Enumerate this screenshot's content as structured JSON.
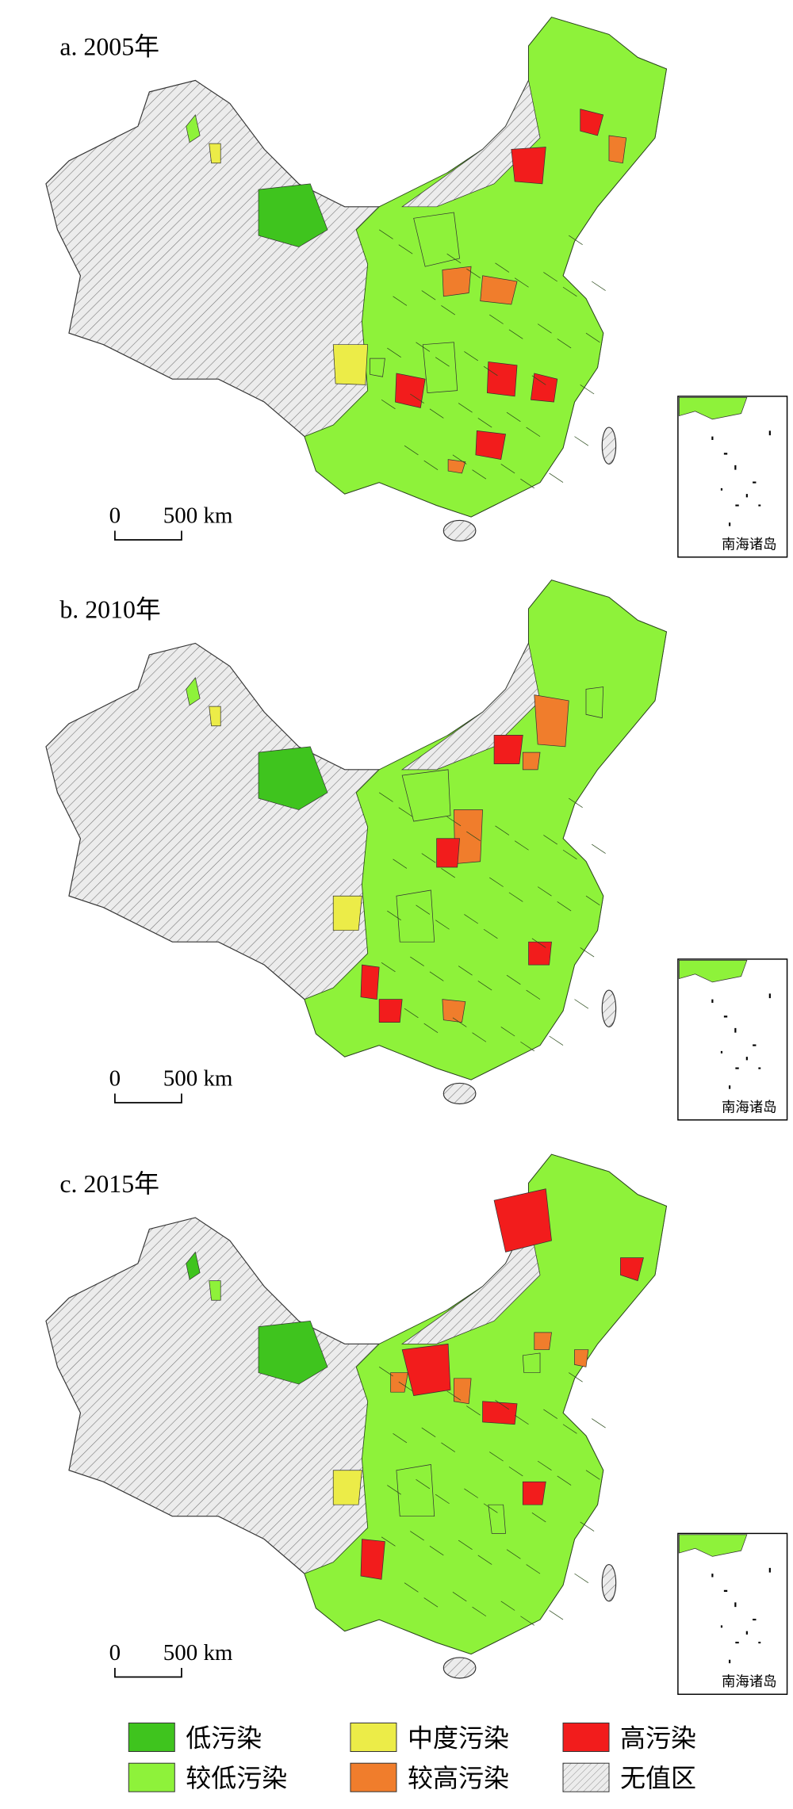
{
  "panels": [
    {
      "title": "a. 2005年",
      "scale_zero": "0",
      "scale_distance": "500 km",
      "inset_label": "南海诸岛"
    },
    {
      "title": "b. 2010年",
      "scale_zero": "0",
      "scale_distance": "500 km",
      "inset_label": "南海诸岛"
    },
    {
      "title": "c. 2015年",
      "scale_zero": "0",
      "scale_distance": "500 km",
      "inset_label": "南海诸岛"
    }
  ],
  "legend": [
    {
      "label": "低污染",
      "color": "#3fc41e"
    },
    {
      "label": "中度污染",
      "color": "#ecec48"
    },
    {
      "label": "高污染",
      "color": "#f21c1c"
    },
    {
      "label": "较低污染",
      "color": "#8ef23a"
    },
    {
      "label": "较高污染",
      "color": "#f07d2c"
    },
    {
      "label": "无值区"
    }
  ]
}
